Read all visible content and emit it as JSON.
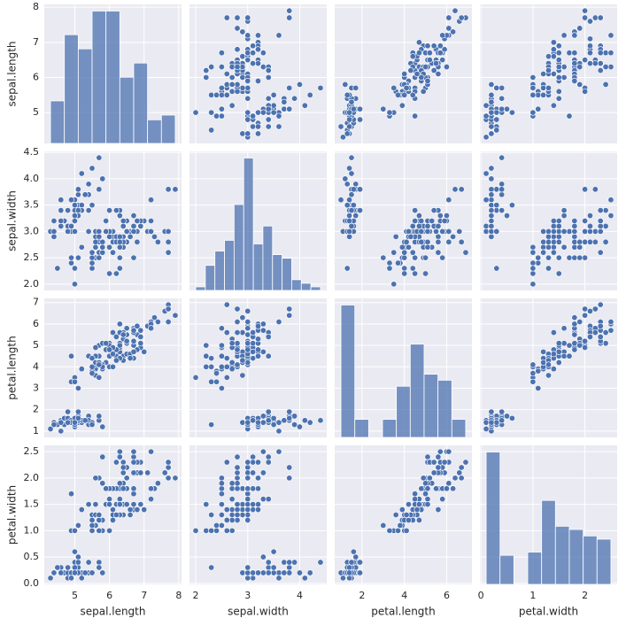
{
  "chart_data": {
    "type": "pairplot",
    "variables": [
      "sepal.length",
      "sepal.width",
      "petal.length",
      "petal.width"
    ],
    "color": "#4c72b0",
    "grid": true,
    "columns": [
      [
        5.1,
        4.9,
        4.7,
        4.6,
        5.0,
        5.4,
        4.6,
        5.0,
        4.4,
        4.9,
        5.4,
        4.8,
        4.8,
        4.3,
        5.8,
        5.7,
        5.4,
        5.1,
        5.7,
        5.1,
        5.4,
        5.1,
        4.6,
        5.1,
        4.8,
        5.0,
        5.0,
        5.2,
        5.2,
        4.7,
        4.8,
        5.4,
        5.2,
        5.5,
        4.9,
        5.0,
        5.5,
        4.9,
        4.4,
        5.1,
        5.0,
        4.5,
        4.4,
        5.0,
        5.1,
        4.8,
        5.1,
        4.6,
        5.3,
        5.0,
        7.0,
        6.4,
        6.9,
        5.5,
        6.5,
        5.7,
        6.3,
        4.9,
        6.6,
        5.2,
        5.0,
        5.9,
        6.0,
        6.1,
        5.6,
        6.7,
        5.6,
        5.8,
        6.2,
        5.6,
        5.9,
        6.1,
        6.3,
        6.1,
        6.4,
        6.6,
        6.8,
        6.7,
        6.0,
        5.7,
        5.5,
        5.5,
        5.8,
        6.0,
        5.4,
        6.0,
        6.7,
        6.3,
        5.6,
        5.5,
        5.5,
        6.1,
        5.8,
        5.0,
        5.6,
        5.7,
        5.7,
        6.2,
        5.1,
        5.7,
        6.3,
        5.8,
        7.1,
        6.3,
        6.5,
        7.6,
        4.9,
        7.3,
        6.7,
        7.2,
        6.5,
        6.4,
        6.8,
        5.7,
        5.8,
        6.4,
        6.5,
        7.7,
        7.7,
        6.0,
        6.9,
        5.6,
        7.7,
        6.3,
        6.7,
        7.2,
        6.2,
        6.1,
        6.4,
        7.2,
        7.4,
        7.9,
        6.4,
        6.3,
        6.1,
        7.7,
        6.3,
        6.4,
        6.0,
        6.9,
        6.7,
        6.9,
        5.8,
        6.8,
        6.7,
        6.7,
        6.3,
        6.5,
        6.2,
        5.9
      ],
      [
        3.5,
        3.0,
        3.2,
        3.1,
        3.6,
        3.9,
        3.4,
        3.4,
        2.9,
        3.1,
        3.7,
        3.4,
        3.0,
        3.0,
        4.0,
        4.4,
        3.9,
        3.5,
        3.8,
        3.8,
        3.4,
        3.7,
        3.6,
        3.3,
        3.4,
        3.0,
        3.4,
        3.5,
        3.4,
        3.2,
        3.1,
        3.4,
        4.1,
        4.2,
        3.1,
        3.2,
        3.5,
        3.6,
        3.0,
        3.4,
        3.5,
        2.3,
        3.2,
        3.5,
        3.8,
        3.0,
        3.8,
        3.2,
        3.7,
        3.3,
        3.2,
        3.2,
        3.1,
        2.3,
        2.8,
        2.8,
        3.3,
        2.4,
        2.9,
        2.7,
        2.0,
        3.0,
        2.2,
        2.9,
        2.9,
        3.1,
        3.0,
        2.7,
        2.2,
        2.5,
        3.2,
        2.8,
        2.5,
        2.8,
        2.9,
        3.0,
        2.8,
        3.0,
        2.9,
        2.6,
        2.4,
        2.4,
        2.7,
        2.7,
        3.0,
        3.4,
        3.1,
        2.3,
        3.0,
        2.5,
        2.6,
        3.0,
        2.6,
        2.3,
        2.7,
        3.0,
        2.9,
        2.9,
        2.5,
        2.8,
        3.3,
        2.7,
        3.0,
        2.9,
        3.0,
        3.0,
        2.5,
        2.9,
        2.5,
        3.6,
        3.2,
        2.7,
        3.0,
        2.5,
        2.8,
        3.2,
        3.0,
        3.8,
        2.6,
        2.2,
        3.2,
        2.8,
        2.8,
        2.7,
        3.3,
        3.2,
        2.8,
        3.0,
        2.8,
        3.0,
        2.8,
        3.8,
        2.8,
        2.8,
        2.6,
        3.0,
        3.4,
        3.1,
        3.0,
        3.1,
        3.1,
        3.1,
        2.7,
        3.2,
        3.3,
        3.0,
        2.5,
        3.0,
        3.4,
        3.0
      ],
      [
        1.4,
        1.4,
        1.3,
        1.5,
        1.4,
        1.7,
        1.4,
        1.5,
        1.4,
        1.5,
        1.5,
        1.6,
        1.4,
        1.1,
        1.2,
        1.5,
        1.3,
        1.4,
        1.7,
        1.5,
        1.7,
        1.5,
        1.0,
        1.7,
        1.9,
        1.6,
        1.6,
        1.5,
        1.4,
        1.6,
        1.6,
        1.5,
        1.5,
        1.4,
        1.5,
        1.2,
        1.3,
        1.4,
        1.3,
        1.5,
        1.3,
        1.3,
        1.3,
        1.6,
        1.9,
        1.4,
        1.6,
        1.4,
        1.5,
        1.4,
        4.7,
        4.5,
        4.9,
        4.0,
        4.6,
        4.5,
        4.7,
        3.3,
        4.6,
        3.9,
        3.5,
        4.2,
        4.0,
        4.7,
        3.6,
        4.4,
        4.5,
        4.1,
        4.5,
        3.9,
        4.8,
        4.0,
        4.9,
        4.7,
        4.3,
        4.4,
        4.8,
        5.0,
        4.5,
        3.5,
        3.8,
        3.7,
        3.9,
        5.1,
        4.5,
        4.5,
        4.7,
        4.4,
        4.1,
        4.0,
        4.4,
        4.6,
        4.0,
        3.3,
        4.2,
        4.2,
        4.2,
        4.3,
        3.0,
        4.1,
        6.0,
        5.1,
        5.9,
        5.6,
        5.8,
        6.6,
        4.5,
        6.3,
        5.8,
        6.1,
        5.1,
        5.3,
        5.5,
        5.0,
        5.1,
        5.3,
        5.5,
        6.7,
        6.9,
        5.0,
        5.7,
        4.9,
        6.7,
        4.9,
        5.7,
        6.0,
        4.8,
        4.9,
        5.6,
        5.8,
        6.1,
        6.4,
        5.6,
        5.1,
        5.6,
        6.1,
        5.6,
        5.5,
        4.8,
        5.4,
        5.6,
        5.1,
        5.1,
        5.9,
        5.7,
        5.2,
        5.0,
        5.2,
        5.4,
        5.1
      ],
      [
        0.2,
        0.2,
        0.2,
        0.2,
        0.2,
        0.4,
        0.3,
        0.2,
        0.2,
        0.1,
        0.2,
        0.2,
        0.1,
        0.1,
        0.2,
        0.4,
        0.4,
        0.3,
        0.3,
        0.3,
        0.2,
        0.4,
        0.2,
        0.5,
        0.2,
        0.2,
        0.4,
        0.2,
        0.2,
        0.2,
        0.2,
        0.4,
        0.1,
        0.2,
        0.2,
        0.2,
        0.2,
        0.1,
        0.2,
        0.2,
        0.3,
        0.3,
        0.2,
        0.6,
        0.4,
        0.3,
        0.2,
        0.2,
        0.2,
        0.2,
        1.4,
        1.5,
        1.5,
        1.3,
        1.5,
        1.3,
        1.6,
        1.0,
        1.3,
        1.4,
        1.0,
        1.5,
        1.0,
        1.4,
        1.3,
        1.4,
        1.5,
        1.0,
        1.5,
        1.1,
        1.8,
        1.3,
        1.5,
        1.2,
        1.3,
        1.4,
        1.4,
        1.7,
        1.5,
        1.0,
        1.1,
        1.0,
        1.2,
        1.6,
        1.5,
        1.6,
        1.5,
        1.3,
        1.3,
        1.3,
        1.2,
        1.4,
        1.2,
        1.0,
        1.3,
        1.2,
        1.3,
        1.3,
        1.1,
        1.3,
        2.5,
        1.9,
        2.1,
        1.8,
        2.2,
        2.1,
        1.7,
        1.8,
        1.8,
        2.5,
        2.0,
        1.9,
        2.1,
        2.0,
        2.4,
        2.3,
        1.8,
        2.2,
        2.3,
        1.5,
        2.3,
        2.0,
        2.0,
        1.8,
        2.1,
        1.8,
        1.8,
        1.8,
        2.1,
        1.6,
        1.9,
        2.0,
        2.2,
        1.5,
        1.4,
        2.3,
        2.4,
        1.8,
        1.8,
        2.1,
        2.4,
        2.3,
        1.9,
        2.3,
        2.5,
        2.3,
        1.9,
        2.0,
        2.3,
        1.8
      ]
    ],
    "axes": [
      {
        "lim": [
          4.12,
          8.08
        ],
        "xticks": [
          5,
          6,
          7,
          8
        ],
        "yticks": [
          5,
          6,
          7,
          8
        ]
      },
      {
        "lim": [
          1.88,
          4.52
        ],
        "xticks": [
          2,
          3,
          4
        ],
        "yticks": [
          {
            "value": 2,
            "label": "2.0"
          },
          2.5,
          {
            "value": 3,
            "label": "3.0"
          },
          3.5,
          {
            "value": 4,
            "label": "4.0"
          },
          4.5
        ]
      },
      {
        "lim": [
          0.705,
          7.195
        ],
        "xticks": [
          2,
          4,
          6
        ],
        "yticks": [
          1,
          2,
          3,
          4,
          5,
          6,
          7
        ]
      },
      {
        "lim": [
          -0.02,
          2.62
        ],
        "xticks": [
          0,
          1,
          2
        ],
        "yticks": [
          {
            "value": 0,
            "label": "0.0"
          },
          0.5,
          {
            "value": 1,
            "label": "1.0"
          },
          1.5,
          {
            "value": 2,
            "label": "2.0"
          },
          2.5
        ]
      }
    ],
    "histograms": [
      {
        "bins": [
          4.3,
          4.7,
          5.1,
          5.5,
          5.9,
          6.3,
          6.7,
          7.1,
          7.5,
          7.9
        ],
        "counts": [
          9,
          23,
          20,
          28,
          28,
          14,
          17,
          5,
          6
        ],
        "ylim": [
          0,
          29.4
        ]
      },
      {
        "bins": [
          2.0,
          2.185,
          2.369,
          2.554,
          2.738,
          2.923,
          3.108,
          3.292,
          3.477,
          3.662,
          3.846,
          4.031,
          4.215,
          4.4
        ],
        "counts": [
          1,
          7,
          11,
          14,
          24,
          37,
          13,
          18,
          10,
          9,
          3,
          2,
          1
        ],
        "ylim": [
          0,
          38.85
        ]
      },
      {
        "bins": [
          1.0,
          1.656,
          2.311,
          2.967,
          3.622,
          4.278,
          4.933,
          5.589,
          6.244,
          6.9
        ],
        "counts": [
          44,
          6,
          0,
          6,
          17,
          31,
          21,
          19,
          6
        ],
        "ylim": [
          0,
          46.2
        ]
      },
      {
        "bins": [
          0.1,
          0.367,
          0.633,
          0.9,
          1.167,
          1.433,
          1.7,
          1.967,
          2.233,
          2.5
        ],
        "counts": [
          41,
          9,
          0,
          10,
          26,
          18,
          17,
          15,
          14
        ],
        "ylim": [
          0,
          43.05
        ]
      }
    ]
  }
}
